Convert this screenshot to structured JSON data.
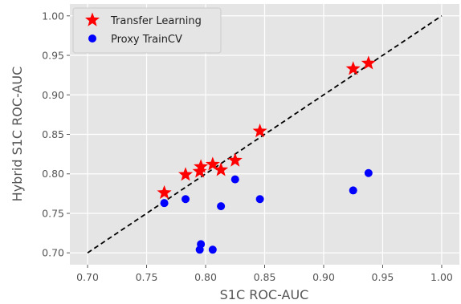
{
  "chart_data": {
    "type": "scatter",
    "xlabel": "S1C ROC-AUC",
    "ylabel": "Hybrid S1C ROC-AUC",
    "xlim": [
      0.685,
      1.015
    ],
    "ylim": [
      0.685,
      1.015
    ],
    "xticks": [
      "0.70",
      "0.75",
      "0.80",
      "0.85",
      "0.90",
      "0.95",
      "1.00"
    ],
    "yticks": [
      "0.70",
      "0.75",
      "0.80",
      "0.85",
      "0.90",
      "0.95",
      "1.00"
    ],
    "grid": true,
    "legend_position": "top-left",
    "reference_line": {
      "style": "dashed",
      "color": "#000000",
      "from": [
        0.7,
        0.7
      ],
      "to": [
        1.0,
        1.0
      ]
    },
    "series": [
      {
        "name": "Transfer Learning",
        "marker": "star",
        "color": "#ff0000",
        "x": [
          0.765,
          0.783,
          0.795,
          0.796,
          0.806,
          0.813,
          0.825,
          0.846,
          0.925,
          0.938
        ],
        "y": [
          0.776,
          0.799,
          0.803,
          0.809,
          0.812,
          0.805,
          0.817,
          0.854,
          0.933,
          0.94
        ]
      },
      {
        "name": "Proxy TrainCV",
        "marker": "circle",
        "color": "#0000ff",
        "x": [
          0.765,
          0.783,
          0.795,
          0.796,
          0.806,
          0.813,
          0.825,
          0.846,
          0.925,
          0.938
        ],
        "y": [
          0.763,
          0.768,
          0.704,
          0.711,
          0.704,
          0.759,
          0.793,
          0.768,
          0.779,
          0.801
        ]
      }
    ]
  }
}
